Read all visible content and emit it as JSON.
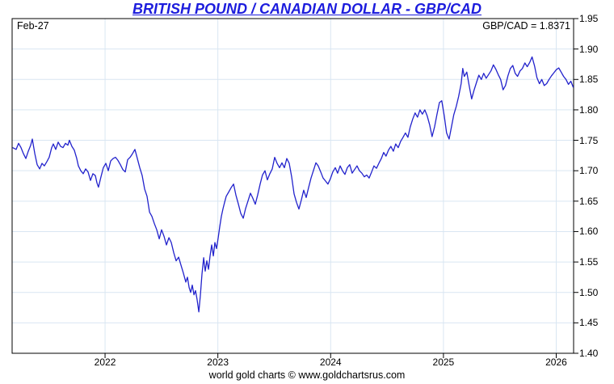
{
  "footer": {
    "credit": "world gold charts © www.goldchartsrus.com"
  },
  "chart_data": {
    "type": "line",
    "title": "BRITISH POUND / CANADIAN DOLLAR - GBP/CAD",
    "title_color": "#1c1cdd",
    "date_label": "Feb-27",
    "quote_label": "GBP/CAD = 1.8371",
    "last_value": 1.8371,
    "line_color": "#2222cc",
    "grid_color": "#d9e6f2",
    "axis_color": "#000000",
    "grid": true,
    "legend": "none",
    "xlim": [
      2021.176,
      2026.154
    ],
    "ylim": [
      1.4,
      1.95
    ],
    "x_ticks": [
      2022,
      2023,
      2024,
      2025,
      2026
    ],
    "x_tick_labels": [
      "2022",
      "2023",
      "2024",
      "2025",
      "2026"
    ],
    "y_ticks": [
      1.95,
      1.9,
      1.85,
      1.8,
      1.75,
      1.7,
      1.65,
      1.6,
      1.55,
      1.5,
      1.45,
      1.4
    ],
    "y_tick_labels": [
      "1.95",
      "1.90",
      "1.85",
      "1.80",
      "1.75",
      "1.70",
      "1.65",
      "1.60",
      "1.55",
      "1.50",
      "1.45",
      "1.40"
    ],
    "series": [
      {
        "name": "GBP/CAD",
        "points": [
          [
            2021.18,
            1.738
          ],
          [
            2021.212,
            1.735
          ],
          [
            2021.233,
            1.745
          ],
          [
            2021.255,
            1.738
          ],
          [
            2021.276,
            1.728
          ],
          [
            2021.298,
            1.72
          ],
          [
            2021.319,
            1.732
          ],
          [
            2021.341,
            1.742
          ],
          [
            2021.355,
            1.752
          ],
          [
            2021.377,
            1.728
          ],
          [
            2021.398,
            1.71
          ],
          [
            2021.42,
            1.703
          ],
          [
            2021.441,
            1.712
          ],
          [
            2021.462,
            1.708
          ],
          [
            2021.484,
            1.715
          ],
          [
            2021.505,
            1.722
          ],
          [
            2021.527,
            1.738
          ],
          [
            2021.541,
            1.744
          ],
          [
            2021.563,
            1.735
          ],
          [
            2021.584,
            1.747
          ],
          [
            2021.606,
            1.74
          ],
          [
            2021.627,
            1.738
          ],
          [
            2021.649,
            1.745
          ],
          [
            2021.67,
            1.742
          ],
          [
            2021.684,
            1.75
          ],
          [
            2021.706,
            1.74
          ],
          [
            2021.727,
            1.734
          ],
          [
            2021.749,
            1.72
          ],
          [
            2021.763,
            1.708
          ],
          [
            2021.785,
            1.7
          ],
          [
            2021.806,
            1.695
          ],
          [
            2021.828,
            1.703
          ],
          [
            2021.849,
            1.698
          ],
          [
            2021.871,
            1.684
          ],
          [
            2021.892,
            1.695
          ],
          [
            2021.914,
            1.692
          ],
          [
            2021.928,
            1.68
          ],
          [
            2021.942,
            1.673
          ],
          [
            2021.964,
            1.69
          ],
          [
            2021.985,
            1.705
          ],
          [
            2022.007,
            1.712
          ],
          [
            2022.028,
            1.7
          ],
          [
            2022.05,
            1.716
          ],
          [
            2022.071,
            1.72
          ],
          [
            2022.093,
            1.722
          ],
          [
            2022.114,
            1.717
          ],
          [
            2022.136,
            1.71
          ],
          [
            2022.157,
            1.702
          ],
          [
            2022.179,
            1.698
          ],
          [
            2022.2,
            1.718
          ],
          [
            2022.222,
            1.722
          ],
          [
            2022.243,
            1.728
          ],
          [
            2022.265,
            1.735
          ],
          [
            2022.286,
            1.72
          ],
          [
            2022.308,
            1.705
          ],
          [
            2022.329,
            1.692
          ],
          [
            2022.351,
            1.67
          ],
          [
            2022.372,
            1.658
          ],
          [
            2022.394,
            1.632
          ],
          [
            2022.415,
            1.625
          ],
          [
            2022.437,
            1.613
          ],
          [
            2022.458,
            1.603
          ],
          [
            2022.48,
            1.588
          ],
          [
            2022.501,
            1.603
          ],
          [
            2022.523,
            1.592
          ],
          [
            2022.544,
            1.578
          ],
          [
            2022.566,
            1.59
          ],
          [
            2022.587,
            1.582
          ],
          [
            2022.609,
            1.565
          ],
          [
            2022.63,
            1.552
          ],
          [
            2022.652,
            1.558
          ],
          [
            2022.673,
            1.545
          ],
          [
            2022.694,
            1.532
          ],
          [
            2022.716,
            1.517
          ],
          [
            2022.73,
            1.525
          ],
          [
            2022.745,
            1.508
          ],
          [
            2022.759,
            1.5
          ],
          [
            2022.773,
            1.512
          ],
          [
            2022.788,
            1.496
          ],
          [
            2022.802,
            1.503
          ],
          [
            2022.816,
            1.488
          ],
          [
            2022.831,
            1.468
          ],
          [
            2022.845,
            1.495
          ],
          [
            2022.859,
            1.53
          ],
          [
            2022.874,
            1.557
          ],
          [
            2022.888,
            1.535
          ],
          [
            2022.902,
            1.552
          ],
          [
            2022.917,
            1.538
          ],
          [
            2022.931,
            1.56
          ],
          [
            2022.945,
            1.578
          ],
          [
            2022.96,
            1.56
          ],
          [
            2022.974,
            1.582
          ],
          [
            2022.988,
            1.572
          ],
          [
            2023.003,
            1.59
          ],
          [
            2023.017,
            1.608
          ],
          [
            2023.031,
            1.625
          ],
          [
            2023.046,
            1.638
          ],
          [
            2023.06,
            1.648
          ],
          [
            2023.074,
            1.658
          ],
          [
            2023.096,
            1.665
          ],
          [
            2023.117,
            1.672
          ],
          [
            2023.139,
            1.678
          ],
          [
            2023.16,
            1.66
          ],
          [
            2023.182,
            1.645
          ],
          [
            2023.203,
            1.63
          ],
          [
            2023.225,
            1.622
          ],
          [
            2023.246,
            1.638
          ],
          [
            2023.267,
            1.65
          ],
          [
            2023.289,
            1.663
          ],
          [
            2023.31,
            1.655
          ],
          [
            2023.332,
            1.645
          ],
          [
            2023.353,
            1.66
          ],
          [
            2023.375,
            1.678
          ],
          [
            2023.396,
            1.693
          ],
          [
            2023.418,
            1.7
          ],
          [
            2023.439,
            1.685
          ],
          [
            2023.461,
            1.695
          ],
          [
            2023.482,
            1.703
          ],
          [
            2023.504,
            1.722
          ],
          [
            2023.525,
            1.712
          ],
          [
            2023.547,
            1.705
          ],
          [
            2023.568,
            1.713
          ],
          [
            2023.59,
            1.705
          ],
          [
            2023.611,
            1.72
          ],
          [
            2023.633,
            1.712
          ],
          [
            2023.654,
            1.69
          ],
          [
            2023.676,
            1.662
          ],
          [
            2023.697,
            1.648
          ],
          [
            2023.719,
            1.637
          ],
          [
            2023.74,
            1.652
          ],
          [
            2023.761,
            1.668
          ],
          [
            2023.783,
            1.656
          ],
          [
            2023.804,
            1.672
          ],
          [
            2023.826,
            1.688
          ],
          [
            2023.847,
            1.7
          ],
          [
            2023.869,
            1.713
          ],
          [
            2023.89,
            1.708
          ],
          [
            2023.912,
            1.698
          ],
          [
            2023.933,
            1.688
          ],
          [
            2023.955,
            1.683
          ],
          [
            2023.976,
            1.678
          ],
          [
            2023.998,
            1.687
          ],
          [
            2024.019,
            1.698
          ],
          [
            2024.041,
            1.705
          ],
          [
            2024.062,
            1.696
          ],
          [
            2024.084,
            1.708
          ],
          [
            2024.105,
            1.7
          ],
          [
            2024.127,
            1.694
          ],
          [
            2024.148,
            1.705
          ],
          [
            2024.169,
            1.71
          ],
          [
            2024.191,
            1.696
          ],
          [
            2024.212,
            1.702
          ],
          [
            2024.234,
            1.708
          ],
          [
            2024.255,
            1.7
          ],
          [
            2024.277,
            1.696
          ],
          [
            2024.298,
            1.69
          ],
          [
            2024.32,
            1.693
          ],
          [
            2024.341,
            1.688
          ],
          [
            2024.363,
            1.698
          ],
          [
            2024.384,
            1.708
          ],
          [
            2024.406,
            1.704
          ],
          [
            2024.427,
            1.712
          ],
          [
            2024.449,
            1.72
          ],
          [
            2024.47,
            1.73
          ],
          [
            2024.491,
            1.724
          ],
          [
            2024.513,
            1.734
          ],
          [
            2024.534,
            1.74
          ],
          [
            2024.556,
            1.732
          ],
          [
            2024.577,
            1.744
          ],
          [
            2024.599,
            1.738
          ],
          [
            2024.62,
            1.748
          ],
          [
            2024.642,
            1.755
          ],
          [
            2024.663,
            1.762
          ],
          [
            2024.685,
            1.755
          ],
          [
            2024.706,
            1.772
          ],
          [
            2024.728,
            1.785
          ],
          [
            2024.749,
            1.795
          ],
          [
            2024.77,
            1.788
          ],
          [
            2024.792,
            1.8
          ],
          [
            2024.813,
            1.793
          ],
          [
            2024.835,
            1.8
          ],
          [
            2024.856,
            1.79
          ],
          [
            2024.878,
            1.775
          ],
          [
            2024.899,
            1.756
          ],
          [
            2024.921,
            1.772
          ],
          [
            2024.942,
            1.792
          ],
          [
            2024.964,
            1.812
          ],
          [
            2024.985,
            1.815
          ],
          [
            2025.007,
            1.79
          ],
          [
            2025.028,
            1.762
          ],
          [
            2025.05,
            1.752
          ],
          [
            2025.071,
            1.772
          ],
          [
            2025.092,
            1.792
          ],
          [
            2025.114,
            1.806
          ],
          [
            2025.135,
            1.822
          ],
          [
            2025.157,
            1.843
          ],
          [
            2025.171,
            1.868
          ],
          [
            2025.185,
            1.855
          ],
          [
            2025.207,
            1.862
          ],
          [
            2025.228,
            1.84
          ],
          [
            2025.25,
            1.818
          ],
          [
            2025.271,
            1.832
          ],
          [
            2025.293,
            1.845
          ],
          [
            2025.314,
            1.857
          ],
          [
            2025.336,
            1.85
          ],
          [
            2025.357,
            1.86
          ],
          [
            2025.379,
            1.852
          ],
          [
            2025.4,
            1.858
          ],
          [
            2025.421,
            1.864
          ],
          [
            2025.443,
            1.874
          ],
          [
            2025.464,
            1.867
          ],
          [
            2025.486,
            1.858
          ],
          [
            2025.507,
            1.85
          ],
          [
            2025.529,
            1.833
          ],
          [
            2025.55,
            1.84
          ],
          [
            2025.572,
            1.856
          ],
          [
            2025.593,
            1.868
          ],
          [
            2025.615,
            1.873
          ],
          [
            2025.636,
            1.86
          ],
          [
            2025.657,
            1.855
          ],
          [
            2025.679,
            1.864
          ],
          [
            2025.7,
            1.868
          ],
          [
            2025.722,
            1.877
          ],
          [
            2025.743,
            1.871
          ],
          [
            2025.765,
            1.878
          ],
          [
            2025.786,
            1.887
          ],
          [
            2025.808,
            1.872
          ],
          [
            2025.829,
            1.853
          ],
          [
            2025.851,
            1.843
          ],
          [
            2025.872,
            1.85
          ],
          [
            2025.893,
            1.84
          ],
          [
            2025.915,
            1.843
          ],
          [
            2025.936,
            1.85
          ],
          [
            2025.958,
            1.856
          ],
          [
            2025.979,
            1.861
          ],
          [
            2026.001,
            1.866
          ],
          [
            2026.022,
            1.869
          ],
          [
            2026.044,
            1.862
          ],
          [
            2026.065,
            1.855
          ],
          [
            2026.087,
            1.85
          ],
          [
            2026.108,
            1.842
          ],
          [
            2026.13,
            1.847
          ],
          [
            2026.151,
            1.837
          ]
        ]
      }
    ]
  }
}
